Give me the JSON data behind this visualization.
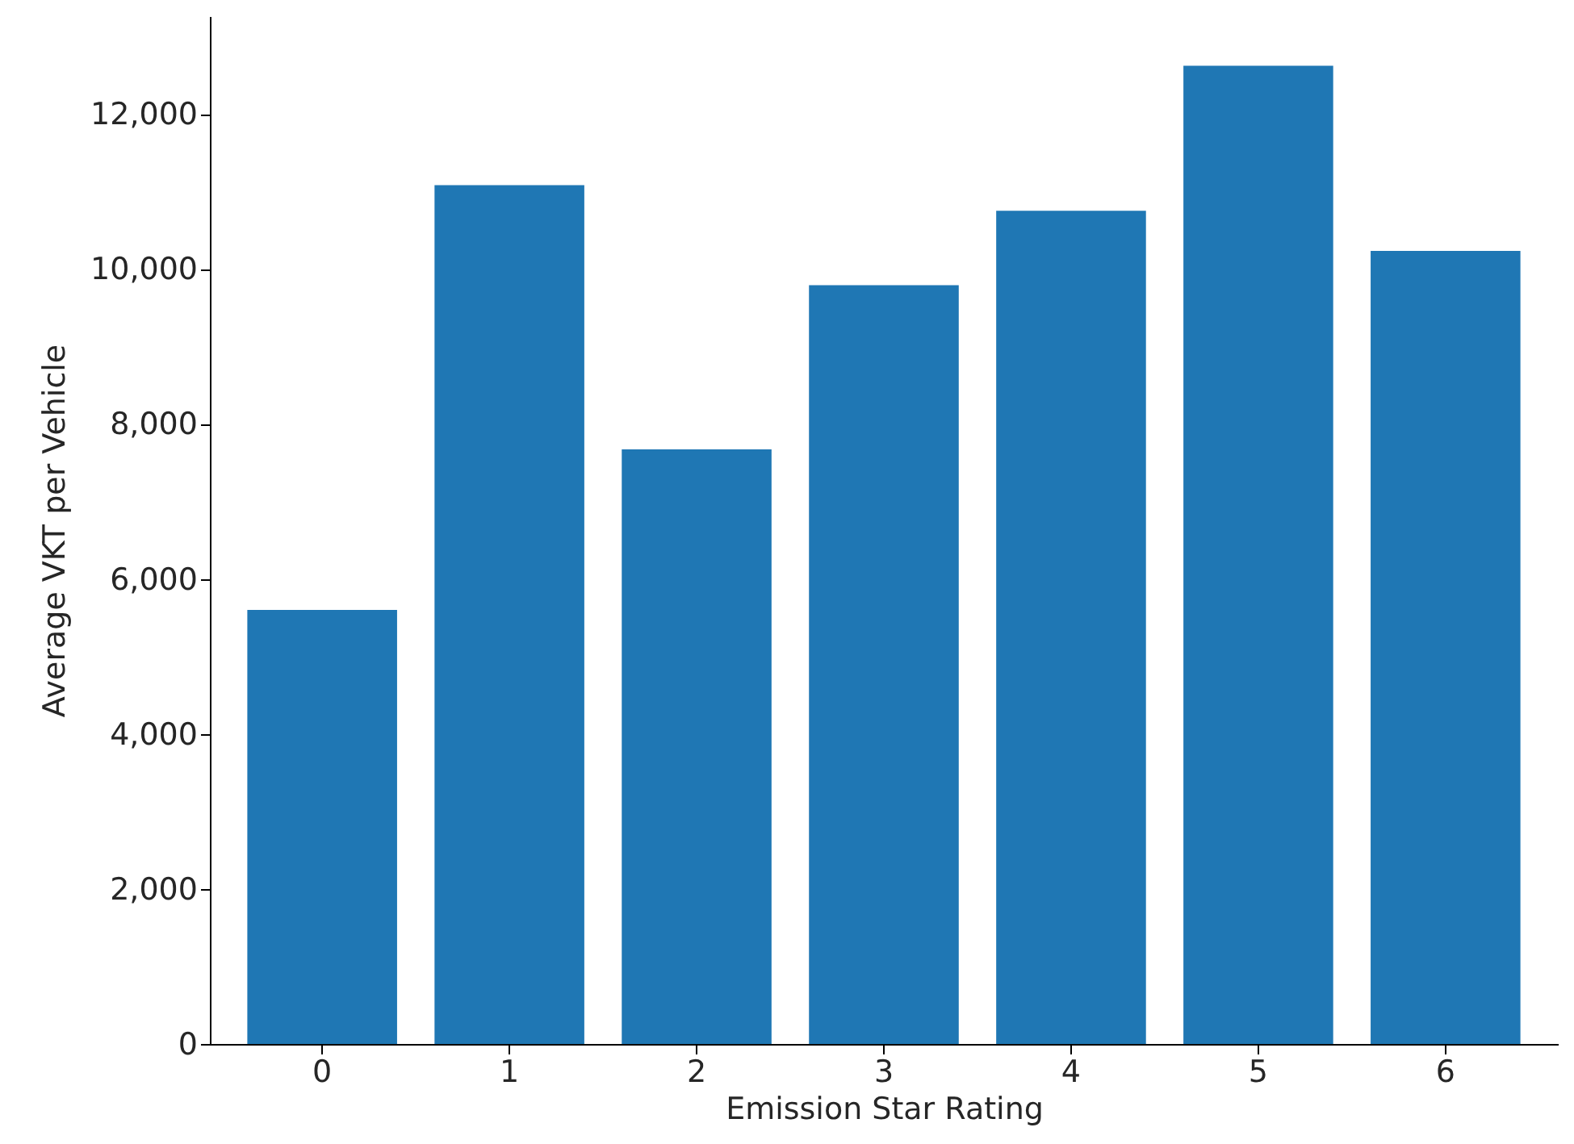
{
  "chart_data": {
    "type": "bar",
    "xlabel": "Emission Star Rating",
    "ylabel": "Average VKT per Vehicle",
    "categories": [
      "0",
      "1",
      "2",
      "3",
      "4",
      "5",
      "6"
    ],
    "values": [
      5600,
      11080,
      7670,
      9790,
      10750,
      12620,
      10230
    ],
    "color": "#1f77b4",
    "ylim": [
      0,
      13260
    ],
    "yticks": [
      0,
      {
        "value": 2000,
        "label": "2,000"
      },
      {
        "value": 4000,
        "label": "4,000"
      },
      {
        "value": 6000,
        "label": "6,000"
      },
      {
        "value": 8000,
        "label": "8,000"
      },
      {
        "value": 10000,
        "label": "10,000"
      },
      {
        "value": 12000,
        "label": "12,000"
      }
    ],
    "grid": false
  }
}
